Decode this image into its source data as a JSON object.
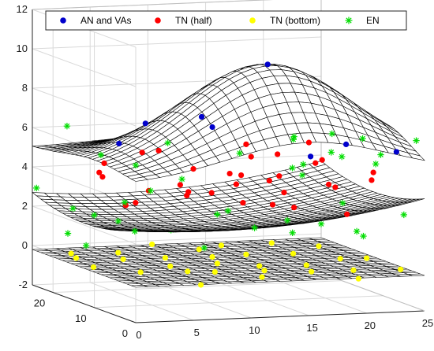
{
  "chart_data": {
    "type": "scatter",
    "projection": "3d",
    "title": "",
    "xlabel": "",
    "ylabel": "",
    "zlabel": "",
    "x_range": [
      0,
      25
    ],
    "y_range": [
      0,
      25
    ],
    "z_range": [
      -2,
      12
    ],
    "grid": true,
    "legend_position": "top",
    "z_ticks": [
      "-2",
      "0",
      "2",
      "4",
      "6",
      "8",
      "10",
      "12"
    ],
    "x_ticks": [
      "25",
      "20",
      "15",
      "10",
      "5",
      "0"
    ],
    "y_ticks": [
      "0",
      "10",
      "20"
    ],
    "surfaces": [
      {
        "role": "top",
        "color": "#000000",
        "form": "gaussian",
        "base": 5.0,
        "peak": 10.0,
        "peak_at": [
          15,
          10
        ],
        "spread": 7
      },
      {
        "role": "middle",
        "color": "#000000",
        "form": "saddle",
        "mid": 2.0,
        "edge_high": 3.2
      },
      {
        "role": "bottom",
        "color": "#000000",
        "form": "plane",
        "z": -0.2
      }
    ],
    "series": [
      {
        "name": "AN and VAs",
        "marker": "circle",
        "color": "#0000cc",
        "points": [
          [
            15,
            10,
            10
          ],
          [
            20,
            5,
            6.2
          ],
          [
            18,
            8,
            5.4
          ],
          [
            12,
            15,
            6.5
          ],
          [
            5,
            18,
            5.6
          ],
          [
            8,
            20,
            6.4
          ],
          [
            24,
            4,
            5.8
          ],
          [
            10,
            12,
            7.3
          ]
        ]
      },
      {
        "name": "TN (half)",
        "marker": "circle",
        "color": "#ff0000",
        "points": [
          [
            22,
            4,
            4.8
          ],
          [
            19,
            8,
            5.2
          ],
          [
            16,
            10,
            4.3
          ],
          [
            13,
            12,
            3.8
          ],
          [
            10,
            14,
            4.5
          ],
          [
            7,
            18,
            5.1
          ],
          [
            4,
            20,
            4.0
          ],
          [
            21,
            12,
            3.6
          ],
          [
            18,
            16,
            4.9
          ],
          [
            14,
            6,
            3.2
          ],
          [
            11,
            8,
            4.7
          ],
          [
            8,
            10,
            3.5
          ],
          [
            5,
            14,
            2.9
          ],
          [
            23,
            16,
            3.1
          ],
          [
            20,
            20,
            2.6
          ],
          [
            17,
            22,
            3.4
          ],
          [
            12,
            20,
            4.2
          ],
          [
            9,
            22,
            2.8
          ],
          [
            6,
            6,
            4.4
          ],
          [
            15,
            14,
            5.0
          ],
          [
            24,
            10,
            3.9
          ],
          [
            2,
            8,
            3.3
          ],
          [
            19,
            2,
            2.9
          ],
          [
            16,
            18,
            5.3
          ],
          [
            13,
            4,
            4.6
          ],
          [
            10,
            2,
            3.7
          ],
          [
            7,
            14,
            5.5
          ],
          [
            22,
            18,
            4.2
          ],
          [
            18,
            12,
            2.5
          ],
          [
            3,
            16,
            4.8
          ],
          [
            11,
            18,
            3.0
          ],
          [
            14,
            24,
            4.4
          ],
          [
            20,
            14,
            5.6
          ],
          [
            8,
            4,
            4.1
          ],
          [
            5,
            22,
            3.6
          ]
        ]
      },
      {
        "name": "TN (bottom)",
        "marker": "circle",
        "color": "#ffff00",
        "points": [
          [
            24,
            3,
            -0.1
          ],
          [
            21,
            6,
            -0.3
          ],
          [
            18,
            9,
            -0.2
          ],
          [
            15,
            12,
            -0.4
          ],
          [
            12,
            15,
            -0.1
          ],
          [
            9,
            18,
            -0.3
          ],
          [
            6,
            21,
            -0.2
          ],
          [
            3,
            24,
            -0.4
          ],
          [
            22,
            12,
            -0.2
          ],
          [
            19,
            15,
            -0.1
          ],
          [
            16,
            18,
            -0.3
          ],
          [
            13,
            21,
            -0.2
          ],
          [
            10,
            24,
            -0.1
          ],
          [
            20,
            2,
            -0.4
          ],
          [
            17,
            5,
            -0.2
          ],
          [
            14,
            8,
            -0.3
          ],
          [
            11,
            11,
            -0.1
          ],
          [
            8,
            14,
            -0.4
          ],
          [
            5,
            17,
            -0.2
          ],
          [
            2,
            20,
            -0.3
          ],
          [
            23,
            20,
            -0.2
          ],
          [
            7,
            7,
            -0.1
          ],
          [
            4,
            10,
            -0.3
          ],
          [
            1,
            13,
            -0.2
          ],
          [
            25,
            14,
            -0.4
          ],
          [
            12,
            3,
            -0.2
          ],
          [
            9,
            6,
            -0.1
          ],
          [
            16,
            24,
            -0.3
          ],
          [
            20,
            23,
            -0.2
          ],
          [
            6,
            1,
            -0.3
          ]
        ]
      },
      {
        "name": "EN",
        "marker": "asterisk",
        "color": "#00dd00",
        "points": [
          [
            25,
            2,
            6.5
          ],
          [
            23,
            5,
            5.6
          ],
          [
            24,
            9,
            4.8
          ],
          [
            22,
            14,
            6.0
          ],
          [
            25,
            20,
            4.3
          ],
          [
            23,
            24,
            3.1
          ],
          [
            20,
            1,
            6.8
          ],
          [
            21,
            22,
            1.0
          ],
          [
            24,
            17,
            2.2
          ],
          [
            19,
            25,
            0.6
          ],
          [
            16,
            25,
            1.2
          ],
          [
            12,
            25,
            0.5
          ],
          [
            8,
            25,
            2.0
          ],
          [
            5,
            24,
            1.5
          ],
          [
            2,
            22,
            0.8
          ],
          [
            1,
            18,
            2.4
          ],
          [
            0,
            12,
            1.0
          ],
          [
            1,
            7,
            2.6
          ],
          [
            2,
            2,
            4.5
          ],
          [
            4,
            0,
            5.2
          ],
          [
            9,
            0,
            6.4
          ],
          [
            14,
            1,
            6.9
          ],
          [
            18,
            3,
            6.0
          ],
          [
            17,
            7,
            5.1
          ],
          [
            13,
            14,
            2.3
          ],
          [
            6,
            9,
            6.3
          ],
          [
            25,
            5,
            2.5
          ],
          [
            22,
            8,
            1.5
          ],
          [
            3,
            25,
            6.0
          ],
          [
            10,
            22,
            4.2
          ],
          [
            0,
            24,
            3.0
          ],
          [
            24,
            12,
            0.9
          ],
          [
            15,
            4,
            1.9
          ],
          [
            11,
            2,
            2.4
          ],
          [
            7,
            3,
            1.4
          ],
          [
            2,
            14,
            5.4
          ],
          [
            20,
            18,
            4.0
          ],
          [
            6,
            17,
            1.2
          ],
          [
            18,
            12,
            6.1
          ],
          [
            25,
            25,
            0.5
          ],
          [
            0,
            0,
            6.0
          ]
        ]
      }
    ]
  }
}
